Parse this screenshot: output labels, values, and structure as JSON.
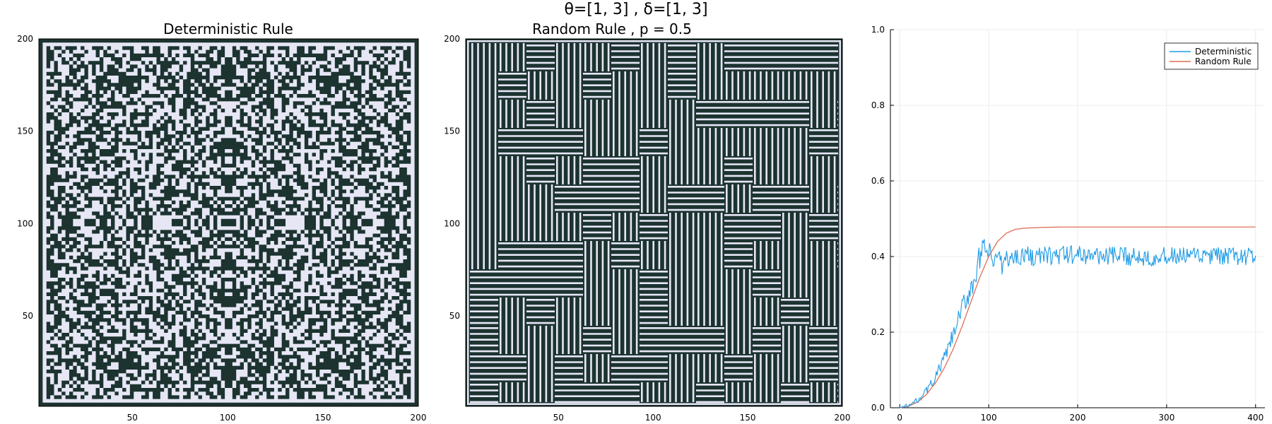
{
  "figure": {
    "suptitle": "θ=[1, 3] , δ=[1, 3]"
  },
  "colors": {
    "dark_cell": "#1c3330",
    "light_cell": "#e6e6f5",
    "deterministic_line": "#1e9be6",
    "random_line": "#e06e55",
    "axis": "#000000",
    "grid": "#ececec"
  },
  "chart_data": [
    {
      "type": "heatmap",
      "title": "Deterministic Rule",
      "grid_size": 200,
      "xlim": [
        1,
        200
      ],
      "ylim": [
        1,
        200
      ],
      "xticks": [
        50,
        100,
        150,
        200
      ],
      "yticks": [
        50,
        100,
        150,
        200
      ],
      "pattern": "symmetric speckle of two binary states"
    },
    {
      "type": "heatmap",
      "title": "Random Rule , p = 0.5",
      "grid_size": 200,
      "xlim": [
        1,
        200
      ],
      "ylim": [
        1,
        200
      ],
      "xticks": [
        50,
        100,
        150,
        200
      ],
      "yticks": [
        50,
        100,
        150,
        200
      ],
      "pattern": "maze-like horizontal and vertical stripes of two binary states"
    },
    {
      "type": "line",
      "xlim": [
        0,
        400
      ],
      "ylim": [
        0,
        1
      ],
      "xticks": [
        0,
        100,
        200,
        300,
        400
      ],
      "yticks": [
        0.0,
        0.2,
        0.4,
        0.6,
        0.8,
        1.0
      ],
      "grid": true,
      "legend_position": "top-right",
      "series": [
        {
          "name": "Deterministic",
          "color": "#1e9be6",
          "x": [
            0,
            10,
            20,
            30,
            40,
            50,
            60,
            70,
            80,
            90,
            95,
            100,
            105,
            110,
            115,
            120,
            125,
            130,
            140,
            150,
            200,
            250,
            300,
            350,
            400
          ],
          "y": [
            0.0,
            0.005,
            0.02,
            0.045,
            0.08,
            0.13,
            0.19,
            0.26,
            0.32,
            0.39,
            0.4,
            0.42,
            0.38,
            0.41,
            0.37,
            0.4,
            0.39,
            0.4,
            0.405,
            0.4,
            0.405,
            0.4,
            0.4,
            0.4,
            0.4
          ],
          "noise_amplitude_after_x100": 0.025
        },
        {
          "name": "Random Rule",
          "color": "#e06e55",
          "x": [
            0,
            10,
            20,
            30,
            40,
            50,
            60,
            70,
            80,
            90,
            100,
            110,
            120,
            130,
            140,
            160,
            180,
            200,
            250,
            300,
            350,
            400
          ],
          "y": [
            0.0,
            0.004,
            0.015,
            0.035,
            0.065,
            0.105,
            0.155,
            0.215,
            0.28,
            0.345,
            0.4,
            0.44,
            0.462,
            0.472,
            0.475,
            0.477,
            0.478,
            0.478,
            0.478,
            0.478,
            0.478,
            0.478
          ]
        }
      ]
    }
  ]
}
